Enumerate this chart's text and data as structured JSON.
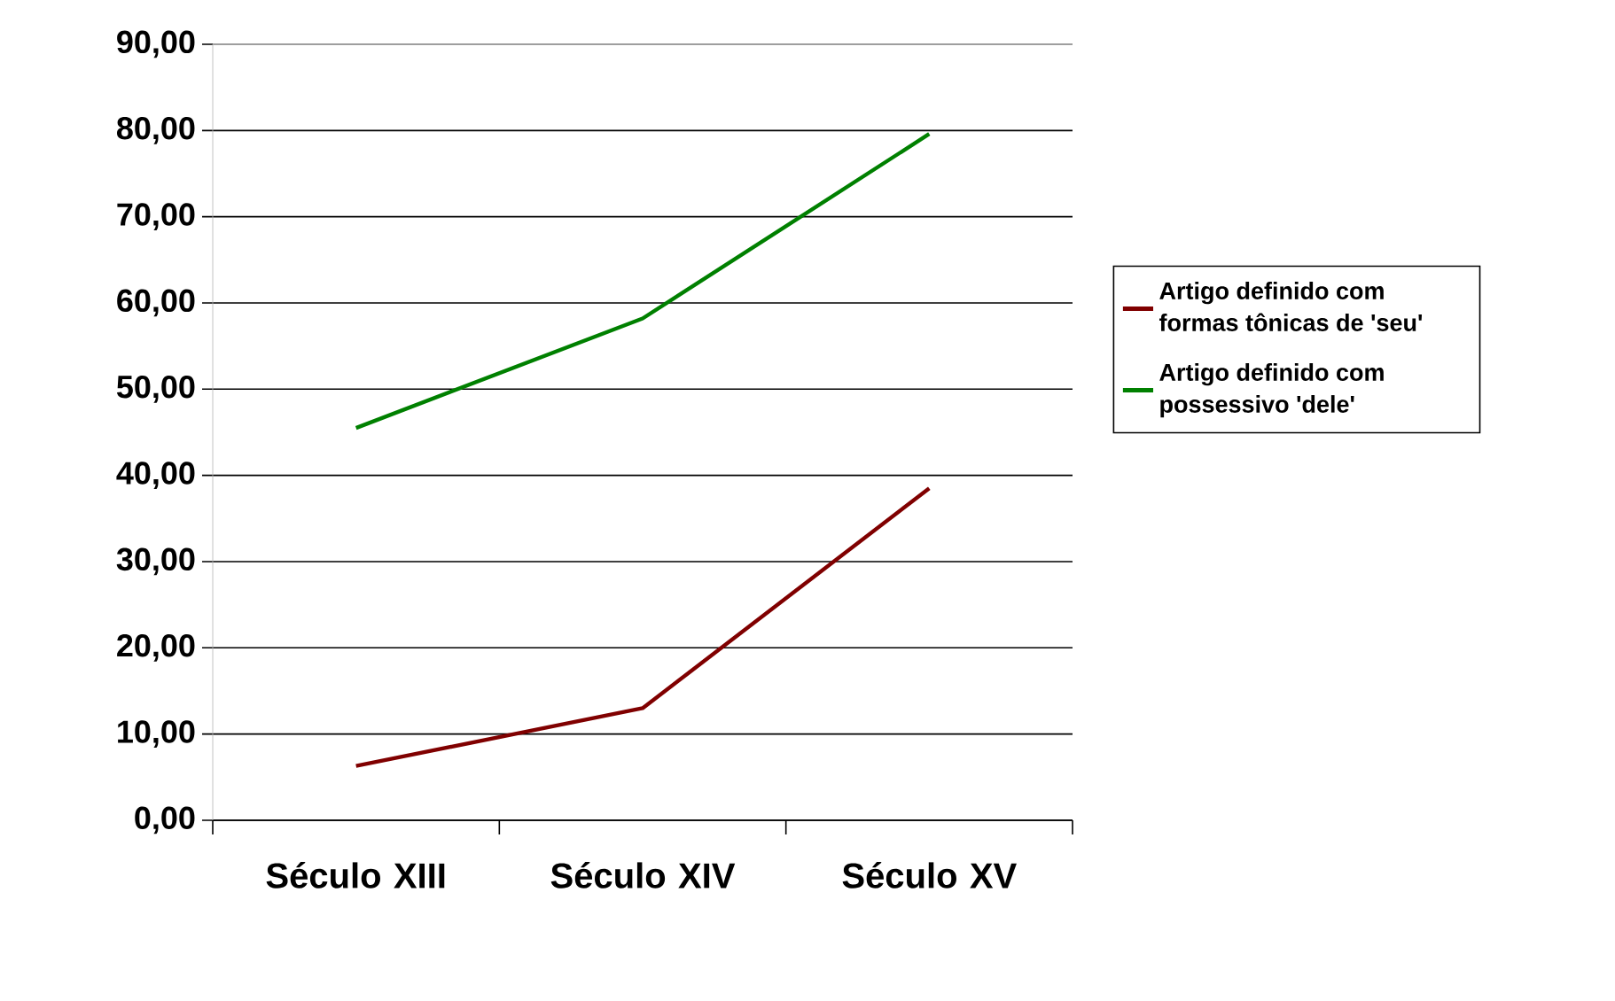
{
  "chart_data": {
    "type": "line",
    "categories": [
      "Século XIII",
      "Século XIV",
      "Século XV"
    ],
    "series": [
      {
        "name": "Artigo definido com formas tônicas de 'seu'",
        "color": "#800000",
        "values": [
          6.3,
          13.0,
          38.5
        ]
      },
      {
        "name": "Artigo definido com possessivo 'dele'",
        "color": "#008000",
        "values": [
          45.5,
          58.2,
          79.6
        ]
      }
    ],
    "ylim": [
      0,
      90
    ],
    "yticks": [
      {
        "value": 0,
        "label": "0,00"
      },
      {
        "value": 10,
        "label": "10,00"
      },
      {
        "value": 20,
        "label": "20,00"
      },
      {
        "value": 30,
        "label": "30,00"
      },
      {
        "value": 40,
        "label": "40,00"
      },
      {
        "value": 50,
        "label": "50,00"
      },
      {
        "value": 60,
        "label": "60,00"
      },
      {
        "value": 70,
        "label": "70,00"
      },
      {
        "value": 80,
        "label": "80,00"
      },
      {
        "value": 90,
        "label": "90,00"
      }
    ],
    "grid": "y",
    "legend": "right",
    "marker": "none",
    "line_style": "solid"
  }
}
